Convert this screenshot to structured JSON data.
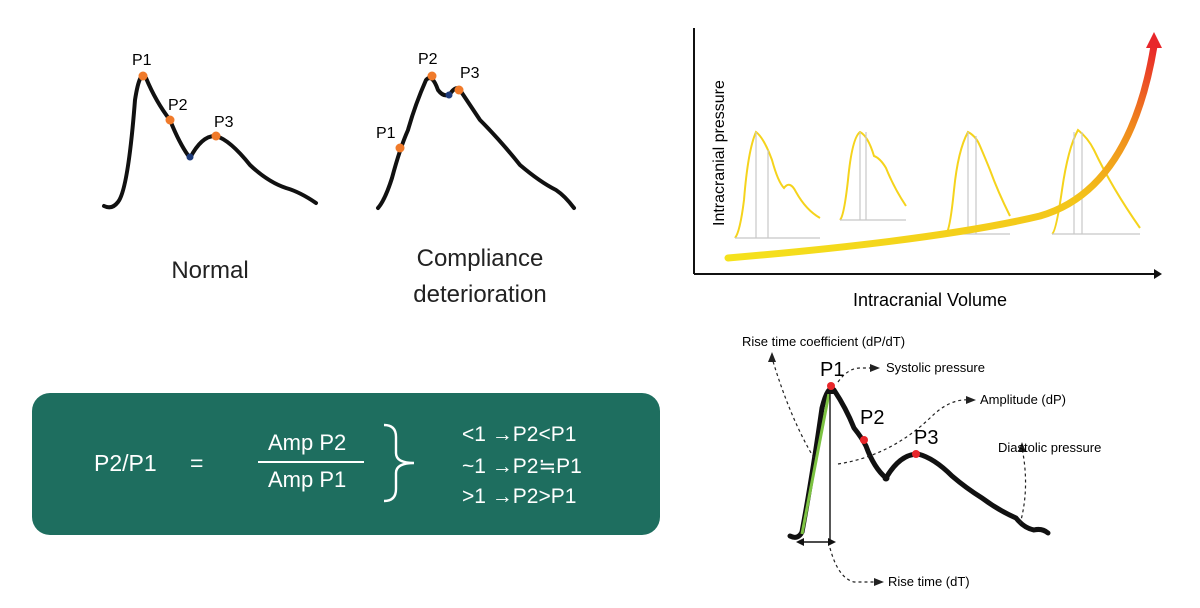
{
  "waveforms": {
    "normal": {
      "caption": "Normal",
      "peaks": {
        "p1": "P1",
        "p2": "P2",
        "p3": "P3"
      }
    },
    "compliance": {
      "caption_line1": "Compliance",
      "caption_line2": "deterioration",
      "peaks": {
        "p1": "P1",
        "p2": "P2",
        "p3": "P3"
      }
    }
  },
  "pv_curve": {
    "y_label": "Intracranial pressure",
    "x_label": "Intracranial Volume"
  },
  "ratio_box": {
    "lhs": "P2/P1",
    "equals": "=",
    "numerator": "Amp P2",
    "denominator": "Amp P1",
    "rules": [
      "<1 →P2<P1",
      "~1 →P2≒P1",
      ">1 →P2>P1"
    ]
  },
  "detail": {
    "labels": {
      "rise_coeff": "Rise time coefficient (dP/dT)",
      "systolic": "Systolic pressure",
      "amplitude": "Amplitude  (dP)",
      "diastolic": "Diastolic pressure",
      "rise_time": "Rise time (dT)"
    },
    "peaks": {
      "p1": "P1",
      "p2": "P2",
      "p3": "P3"
    }
  },
  "colors": {
    "box": "#1e6e5f",
    "orange_marker": "#f07a2a",
    "red_marker": "#e8262a",
    "wave_yellow": "#f5d31c",
    "green_line": "#7cc242"
  }
}
